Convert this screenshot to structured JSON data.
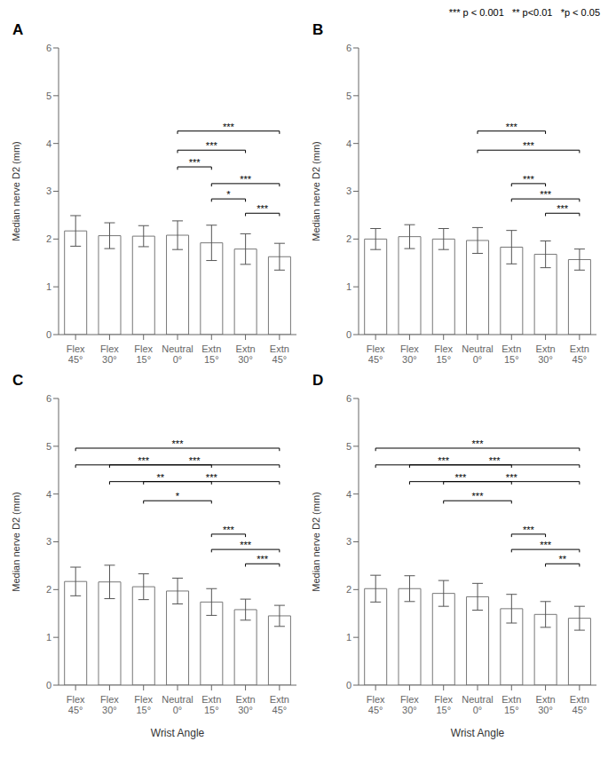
{
  "chart_data": [
    {
      "type": "bar",
      "title": "A",
      "annotation": "*** p < 0.001   ** p<0.01   *p < 0.05",
      "categories": [
        "Flex\n45°",
        "Flex\n30°",
        "Flex\n15°",
        "Neutral\n0°",
        "Extn\n15°",
        "Extn\n30°",
        "Extn\n45°"
      ],
      "values": [
        2.17,
        2.07,
        2.06,
        2.08,
        1.92,
        1.79,
        1.63
      ],
      "errors": [
        0.32,
        0.27,
        0.22,
        0.3,
        0.37,
        0.32,
        0.28
      ],
      "sig_brackets": [
        {
          "from": "Neutral\n0°",
          "to": "Extn\n15°",
          "y": 3.45,
          "text": "***"
        },
        {
          "from": "Neutral\n0°",
          "to": "Extn\n30°",
          "y": 3.8,
          "text": "***"
        },
        {
          "from": "Neutral\n0°",
          "to": "Extn\n45°",
          "y": 4.2,
          "text": "***"
        },
        {
          "from": "Extn\n15°",
          "to": "Extn\n30°",
          "y": 2.78,
          "text": "*"
        },
        {
          "from": "Extn\n15°",
          "to": "Extn\n45°",
          "y": 3.1,
          "text": "***"
        },
        {
          "from": "Extn\n30°",
          "to": "Extn\n45°",
          "y": 2.48,
          "text": "***"
        }
      ],
      "ylabel": "Median nerve D2 (mm)",
      "ylim": [
        0,
        6
      ],
      "yticks": [
        0,
        1,
        2,
        3,
        4,
        5,
        6
      ],
      "color": "white"
    },
    {
      "type": "bar",
      "title": "B",
      "categories": [
        "Flex\n45°",
        "Flex\n30°",
        "Flex\n15°",
        "Neutral\n0°",
        "Extn\n15°",
        "Extn\n30°",
        "Extn\n45°"
      ],
      "values": [
        2.0,
        2.05,
        2.0,
        1.97,
        1.83,
        1.68,
        1.57
      ],
      "errors": [
        0.22,
        0.25,
        0.22,
        0.27,
        0.35,
        0.28,
        0.22
      ],
      "sig_brackets": [
        {
          "from": "Neutral\n0°",
          "to": "Extn\n30°",
          "y": 4.2,
          "text": "***"
        },
        {
          "from": "Neutral\n0°",
          "to": "Extn\n45°",
          "y": 3.8,
          "text": "***"
        },
        {
          "from": "Extn\n15°",
          "to": "Extn\n30°",
          "y": 3.1,
          "text": "***"
        },
        {
          "from": "Extn\n15°",
          "to": "Extn\n45°",
          "y": 2.78,
          "text": "***"
        },
        {
          "from": "Extn\n30°",
          "to": "Extn\n45°",
          "y": 2.48,
          "text": "***"
        }
      ],
      "ylabel": "Median nerve D2 (mm)",
      "ylim": [
        0,
        6
      ],
      "yticks": [
        0,
        1,
        2,
        3,
        4,
        5,
        6
      ],
      "color": "white"
    },
    {
      "type": "bar",
      "title": "C",
      "categories": [
        "Flex\n45°",
        "Flex\n30°",
        "Flex\n15°",
        "Neutral\n0°",
        "Extn\n15°",
        "Extn\n30°",
        "Extn\n45°"
      ],
      "values": [
        2.17,
        2.16,
        2.06,
        1.97,
        1.74,
        1.58,
        1.45
      ],
      "errors": [
        0.3,
        0.35,
        0.27,
        0.27,
        0.28,
        0.22,
        0.22
      ],
      "sig_brackets": [
        {
          "from": "Flex\n45°",
          "to": "Extn\n15°",
          "y": 4.55,
          "text": "***"
        },
        {
          "from": "Flex\n45°",
          "to": "Extn\n45°",
          "y": 4.9,
          "text": "***"
        },
        {
          "from": "Flex\n30°",
          "to": "Extn\n15°",
          "y": 4.2,
          "text": "**"
        },
        {
          "from": "Flex\n30°",
          "to": "Extn\n45°",
          "y": 4.55,
          "text": "***"
        },
        {
          "from": "Flex\n15°",
          "to": "Extn\n15°",
          "y": 3.8,
          "text": "*"
        },
        {
          "from": "Flex\n15°",
          "to": "Extn\n45°",
          "y": 4.2,
          "text": "***"
        },
        {
          "from": "Extn\n15°",
          "to": "Extn\n30°",
          "y": 3.1,
          "text": "***"
        },
        {
          "from": "Extn\n15°",
          "to": "Extn\n45°",
          "y": 2.78,
          "text": "***"
        },
        {
          "from": "Extn\n30°",
          "to": "Extn\n45°",
          "y": 2.48,
          "text": "***"
        }
      ],
      "ylabel": "Median nerve D2 (mm)",
      "xlabel": "Wrist Angle",
      "ylim": [
        0,
        6
      ],
      "yticks": [
        0,
        1,
        2,
        3,
        4,
        5,
        6
      ],
      "color": "white"
    },
    {
      "type": "bar",
      "title": "D",
      "categories": [
        "Flex\n45°",
        "Flex\n30°",
        "Flex\n15°",
        "Neutral\n0°",
        "Extn\n15°",
        "Extn\n30°",
        "Extn\n45°"
      ],
      "values": [
        2.02,
        2.02,
        1.92,
        1.85,
        1.6,
        1.48,
        1.4
      ],
      "errors": [
        0.28,
        0.27,
        0.27,
        0.28,
        0.3,
        0.27,
        0.25
      ],
      "sig_brackets": [
        {
          "from": "Flex\n45°",
          "to": "Extn\n15°",
          "y": 4.55,
          "text": "***"
        },
        {
          "from": "Flex\n45°",
          "to": "Extn\n45°",
          "y": 4.9,
          "text": "***"
        },
        {
          "from": "Flex\n30°",
          "to": "Extn\n15°",
          "y": 4.2,
          "text": "***"
        },
        {
          "from": "Flex\n30°",
          "to": "Extn\n45°",
          "y": 4.55,
          "text": "***"
        },
        {
          "from": "Flex\n15°",
          "to": "Extn\n15°",
          "y": 3.8,
          "text": "***"
        },
        {
          "from": "Flex\n15°",
          "to": "Extn\n45°",
          "y": 4.2,
          "text": "***"
        },
        {
          "from": "Extn\n15°",
          "to": "Extn\n30°",
          "y": 3.1,
          "text": "***"
        },
        {
          "from": "Extn\n15°",
          "to": "Extn\n45°",
          "y": 2.78,
          "text": "***"
        },
        {
          "from": "Extn\n30°",
          "to": "Extn\n45°",
          "y": 2.48,
          "text": "**"
        }
      ],
      "ylabel": "Median nerve D2 (mm)",
      "xlabel": "Wrist Angle",
      "ylim": [
        0,
        6
      ],
      "yticks": [
        0,
        1,
        2,
        3,
        4,
        5,
        6
      ],
      "color": "white"
    }
  ]
}
